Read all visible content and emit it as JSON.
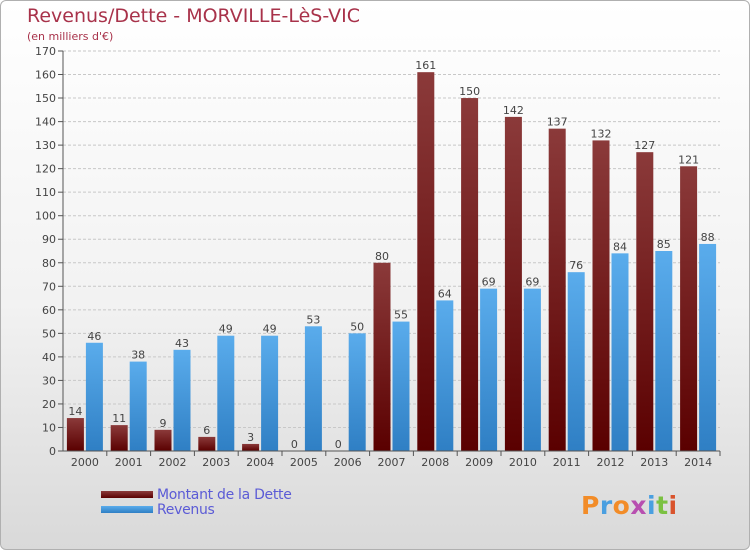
{
  "header": {
    "title": "Revenus/Dette - MORVILLE-LèS-VIC",
    "subtitle": "(en milliers d'€)"
  },
  "legend": {
    "items": [
      {
        "label": "Montant de la Dette",
        "color": "#7b1e24"
      },
      {
        "label": "Revenus",
        "color": "#4a9fe0"
      }
    ]
  },
  "logo": {
    "text": "Proxiti"
  },
  "colors": {
    "dette_top": "#8b3a3a",
    "dette_bottom": "#5a0000",
    "revenus_top": "#5aacec",
    "revenus_bottom": "#2f7fc4",
    "title": "#a8324a"
  },
  "chart_data": {
    "type": "bar",
    "title": "Revenus/Dette - MORVILLE-LèS-VIC",
    "subtitle": "(en milliers d'€)",
    "categories": [
      "2000",
      "2001",
      "2002",
      "2003",
      "2004",
      "2005",
      "2006",
      "2007",
      "2008",
      "2009",
      "2010",
      "2011",
      "2012",
      "2013",
      "2014"
    ],
    "series": [
      {
        "name": "Montant de la Dette",
        "values": [
          14,
          11,
          9,
          6,
          3,
          0,
          0,
          80,
          161,
          150,
          142,
          137,
          132,
          127,
          121
        ]
      },
      {
        "name": "Revenus",
        "values": [
          46,
          38,
          43,
          49,
          49,
          53,
          50,
          55,
          64,
          69,
          69,
          76,
          84,
          85,
          88
        ]
      }
    ],
    "ylim": [
      0,
      170
    ],
    "yticks": [
      0,
      10,
      20,
      30,
      40,
      50,
      60,
      70,
      80,
      90,
      100,
      110,
      120,
      130,
      140,
      150,
      160,
      170
    ],
    "grid": true,
    "legend_position": "bottom-left"
  }
}
